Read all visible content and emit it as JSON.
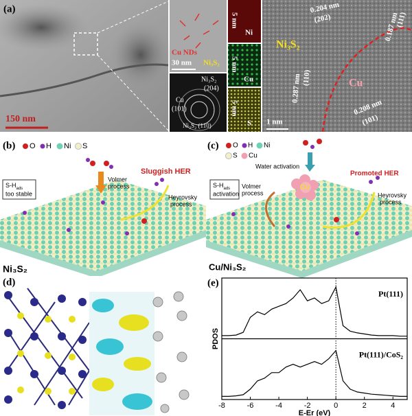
{
  "panels": {
    "a": {
      "label": "(a)",
      "tem_scale": "150 nm",
      "cu_nds": "Cu NDs",
      "inset_scale": "30 nm",
      "inset_phase": "Ni₃S₂",
      "saed": {
        "ring1_phase": "Ni₃S₂",
        "ring1_index": "(204)",
        "ring2_phase": "Cu",
        "ring2_index": "(101)",
        "ring3": "Ni₃S₂ (110)"
      },
      "maps": [
        {
          "scale": "5 nm",
          "element": "Ni"
        },
        {
          "scale": "5 nm",
          "element": "Cu"
        },
        {
          "scale": "5 nm",
          "element": "S"
        }
      ],
      "hrtem": {
        "phase1": "Ni₃S₂",
        "phase2": "Cu",
        "d1": "0.204 nm",
        "d1_index": "(202)",
        "d2": "0.187 nm",
        "d2_index": "(111)",
        "d3": "0.287 nm",
        "d3_index": "(110)",
        "d4": "0.208 nm",
        "d4_index": "(101)",
        "scale": "1 nm"
      }
    },
    "b": {
      "label": "(b)",
      "legend": [
        "O",
        "H",
        "Ni",
        "S"
      ],
      "callout": {
        "main": "S-H",
        "sub": "ads",
        "rest": "too stable"
      },
      "volmer": [
        "Volmer",
        "process"
      ],
      "result": "Sluggish HER",
      "heyrovsky": [
        "Heyrovsky",
        "process"
      ],
      "name": "Ni₃S₂"
    },
    "c": {
      "label": "(c)",
      "legend": [
        "O",
        "H",
        "Ni",
        "S",
        "Cu"
      ],
      "water": "Water activation",
      "result": "Promoted HER",
      "callout": {
        "main": "S-H",
        "sub": "ads",
        "rest": "activation"
      },
      "volmer": [
        "Volmer",
        "process"
      ],
      "heyrovsky": [
        "Heyrovsky",
        "process"
      ],
      "cluster": "Cu",
      "name": "Cu/Ni₃S₂"
    },
    "d": {
      "label": "(d)"
    },
    "e": {
      "label": "(e)"
    }
  },
  "chart_data": {
    "type": "line",
    "xlabel": "E-Er (eV)",
    "ylabel": "PDOS",
    "x": [
      -8,
      -7.5,
      -7,
      -6.5,
      -6,
      -5.5,
      -5,
      -4.5,
      -4,
      -3.5,
      -3,
      -2.5,
      -2,
      -1.5,
      -1,
      -0.5,
      0,
      0.5,
      1,
      1.5,
      2,
      2.5,
      3,
      3.5,
      4,
      4.5,
      5
    ],
    "series": [
      {
        "name": "Pt(111)",
        "color": "#000000",
        "values": [
          0.02,
          0.02,
          0.03,
          0.08,
          0.35,
          0.45,
          0.4,
          0.5,
          0.55,
          0.6,
          0.7,
          0.85,
          0.65,
          0.7,
          0.6,
          0.65,
          0.9,
          0.2,
          0.1,
          0.07,
          0.05,
          0.03,
          0.02,
          0.02,
          0.02,
          0.01,
          0.01
        ]
      },
      {
        "name": "Pt(111)/CoS₂",
        "color": "#000000",
        "values": [
          0.02,
          0.02,
          0.03,
          0.05,
          0.15,
          0.3,
          0.35,
          0.45,
          0.45,
          0.55,
          0.6,
          0.55,
          0.6,
          0.65,
          0.6,
          0.7,
          0.85,
          0.3,
          0.15,
          0.1,
          0.08,
          0.06,
          0.05,
          0.04,
          0.03,
          0.02,
          0.02
        ]
      }
    ],
    "xlim": [
      -8,
      5
    ],
    "ylim": [
      0,
      1
    ],
    "xticks": [
      -8,
      -6,
      -4,
      -2,
      0,
      2,
      4
    ]
  }
}
